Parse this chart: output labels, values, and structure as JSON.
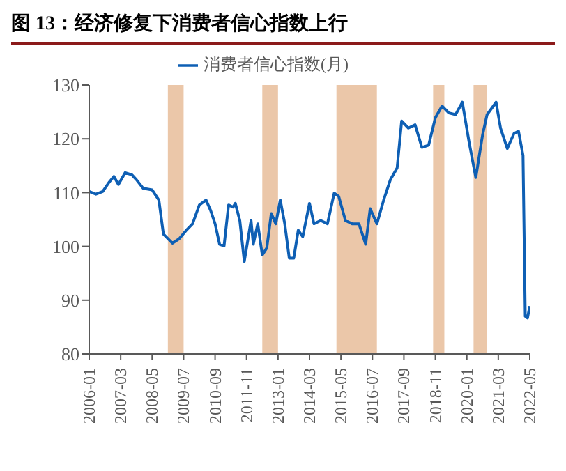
{
  "chart_data": {
    "type": "line",
    "title": "图 13：经济修复下消费者信心指数上行",
    "x": [
      "2006-01",
      "2006-04",
      "2006-07",
      "2006-10",
      "2006-12",
      "2007-02",
      "2007-05",
      "2007-08",
      "2007-10",
      "2008-01",
      "2008-05",
      "2008-08",
      "2008-10",
      "2009-02",
      "2009-05",
      "2009-08",
      "2009-11",
      "2010-02",
      "2010-05",
      "2010-07",
      "2010-09",
      "2010-11",
      "2011-01",
      "2011-03",
      "2011-05",
      "2011-06",
      "2011-08",
      "2011-10",
      "2012-01",
      "2012-02",
      "2012-04",
      "2012-06",
      "2012-08",
      "2012-10",
      "2012-12",
      "2013-02",
      "2013-04",
      "2013-06",
      "2013-08",
      "2013-10",
      "2013-12",
      "2014-03",
      "2014-05",
      "2014-08",
      "2014-11",
      "2015-02",
      "2015-04",
      "2015-07",
      "2015-10",
      "2016-01",
      "2016-04",
      "2016-06",
      "2016-09",
      "2016-12",
      "2017-03",
      "2017-06",
      "2017-08",
      "2017-11",
      "2018-02",
      "2018-05",
      "2018-08",
      "2018-11",
      "2019-02",
      "2019-05",
      "2019-08",
      "2019-11",
      "2020-02",
      "2020-05",
      "2020-08",
      "2020-10",
      "2021-02",
      "2021-04",
      "2021-07",
      "2021-10",
      "2021-12",
      "2022-02",
      "2022-03",
      "2022-04",
      "2022-05"
    ],
    "series": [
      {
        "name": "消费者信心指数(月)",
        "color": "#0e5fb4",
        "values": [
          110.2,
          109.7,
          110.2,
          112,
          113,
          111.5,
          113.7,
          113.3,
          112.4,
          110.8,
          110.5,
          108.6,
          102.3,
          100.6,
          101.4,
          102.9,
          104.2,
          107.7,
          108.6,
          106.7,
          104.2,
          100.4,
          100.1,
          107.7,
          107.3,
          108,
          104.8,
          97.2,
          104.8,
          100.4,
          104.2,
          98.4,
          99.7,
          106.1,
          104.2,
          108.6,
          104.2,
          97.8,
          97.8,
          103,
          101.8,
          108,
          104.2,
          104.8,
          104.2,
          109.9,
          109.3,
          104.8,
          104.2,
          104.2,
          100.4,
          107,
          104.2,
          108.6,
          112.4,
          114.6,
          123.3,
          122,
          122.6,
          118.4,
          118.8,
          123.9,
          126.1,
          124.8,
          124.5,
          126.8,
          119.4,
          112.8,
          120.7,
          124.5,
          126.8,
          122,
          118.2,
          121,
          121.4,
          116.9,
          87,
          86.7,
          88.9
        ]
      }
    ],
    "xlim": [
      "2006-01",
      "2022-05"
    ],
    "xticks": [
      "2006-01",
      "2007-03",
      "2008-05",
      "2009-07",
      "2010-09",
      "2011-11",
      "2013-01",
      "2014-03",
      "2015-05",
      "2016-07",
      "2017-09",
      "2018-11",
      "2020-01",
      "2021-03",
      "2022-05"
    ],
    "ylim": [
      80,
      130
    ],
    "yticks": [
      80,
      90,
      100,
      110,
      120,
      130
    ],
    "bands": [
      {
        "axis": "x",
        "from": "2008-12",
        "to": "2009-07",
        "color": "#e9c1a0"
      },
      {
        "axis": "x",
        "from": "2012-06",
        "to": "2013-01",
        "color": "#e9c1a0"
      },
      {
        "axis": "x",
        "from": "2015-03",
        "to": "2016-09",
        "color": "#e9c1a0"
      },
      {
        "axis": "x",
        "from": "2018-10",
        "to": "2019-03",
        "color": "#e9c1a0"
      },
      {
        "axis": "x",
        "from": "2020-04",
        "to": "2020-10",
        "color": "#e9c1a0"
      }
    ],
    "grid": false,
    "legend": "top",
    "marker": "none",
    "line_style": "solid"
  }
}
